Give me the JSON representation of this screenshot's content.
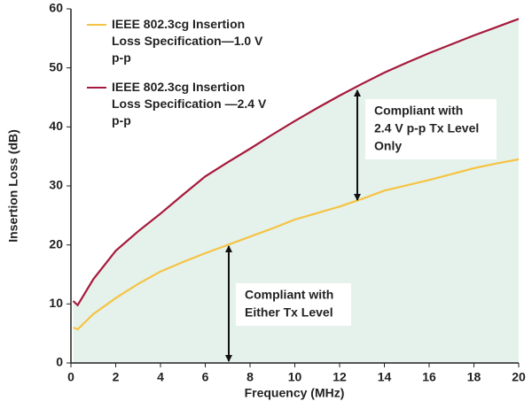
{
  "chart_data": {
    "type": "line",
    "x_label": "Frequency (MHz)",
    "y_label": "Insertion Loss (dB)",
    "x": [
      0.1,
      0.3,
      1,
      2,
      3,
      4,
      5,
      6,
      7,
      8,
      9,
      10,
      11,
      12,
      13,
      14,
      15,
      16,
      17,
      18,
      19,
      20
    ],
    "series": [
      {
        "name": "IEEE 802.3cg Insertion Loss Specification—1.0 V p-p",
        "color": "#f6c343",
        "values": [
          6.0,
          5.7,
          8.3,
          11.0,
          13.4,
          15.5,
          17.1,
          18.6,
          20.0,
          21.4,
          22.8,
          24.3,
          25.4,
          26.5,
          27.8,
          29.2,
          30.1,
          31.0,
          32.0,
          33.0,
          33.8,
          34.5
        ]
      },
      {
        "name": "IEEE 802.3cg Insertion Loss Specification —2.4 V p-p",
        "color": "#a6193c",
        "values": [
          10.5,
          9.8,
          14.2,
          19.0,
          22.3,
          25.3,
          28.5,
          31.6,
          34.0,
          36.3,
          38.7,
          41.0,
          43.2,
          45.3,
          47.3,
          49.2,
          50.9,
          52.5,
          54.0,
          55.5,
          56.9,
          58.3
        ]
      }
    ],
    "area_color": "#e4f2eb",
    "annotations": [
      {
        "lines": [
          "Compliant with",
          "2.4 V p-p Tx Level",
          "Only"
        ]
      },
      {
        "lines": [
          "Compliant with",
          "Either Tx Level"
        ]
      }
    ],
    "xlim": [
      0,
      20
    ],
    "xticks": [
      0,
      2,
      4,
      6,
      8,
      10,
      12,
      14,
      16,
      18,
      20
    ],
    "ylim": [
      0,
      60
    ],
    "yticks": [
      0,
      10,
      20,
      30,
      40,
      50,
      60
    ],
    "legend": "top-left"
  }
}
